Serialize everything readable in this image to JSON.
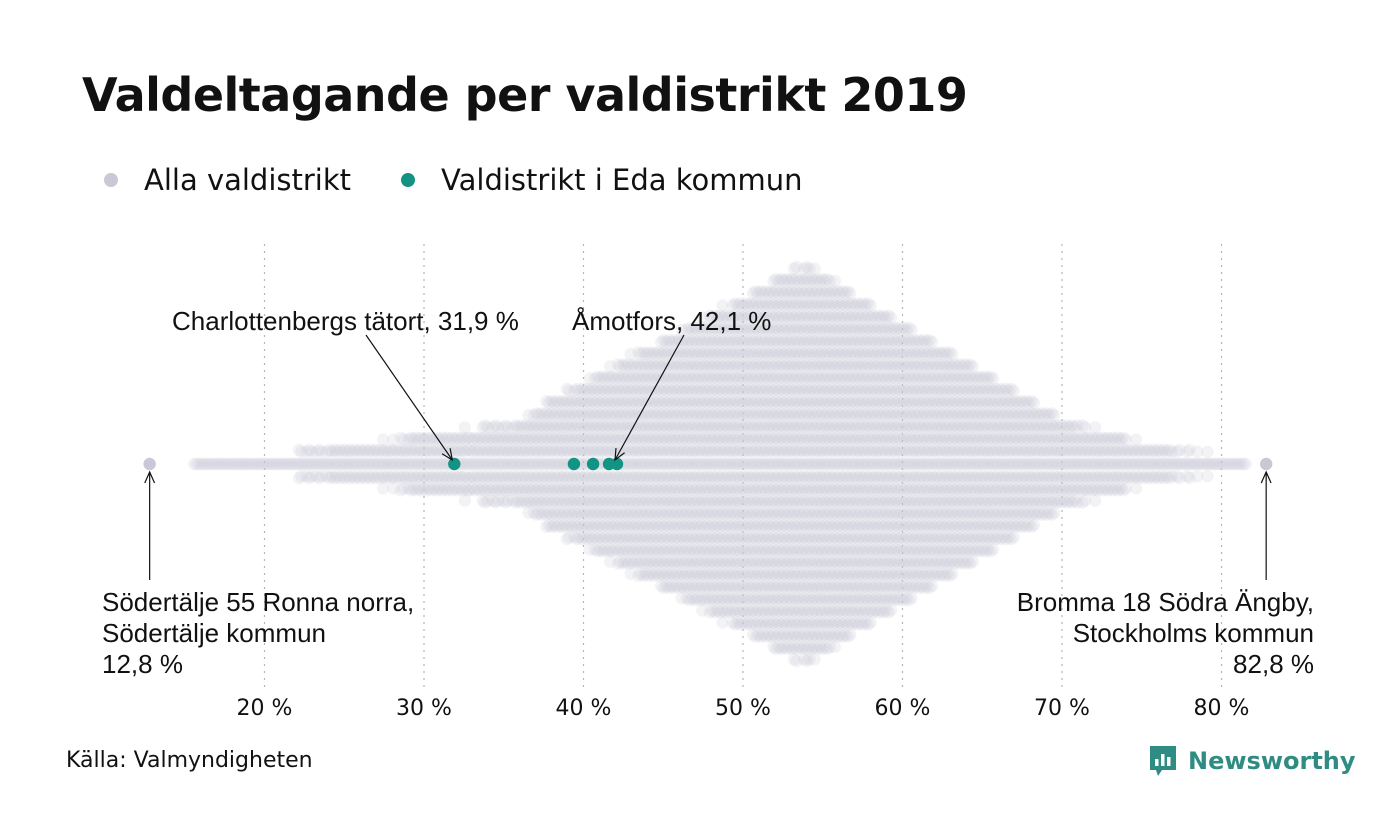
{
  "title": "Valdeltagande per valdistrikt 2019",
  "source": "Källa: Valmyndigheten",
  "brand": "Newsworthy",
  "colors": {
    "all": "#c9c8d6",
    "eda": "#129383",
    "brand": "#2e8c82"
  },
  "legend": [
    {
      "label": "Alla valdistrikt",
      "color": "#c9c8d6"
    },
    {
      "label": "Valdistrikt i Eda kommun",
      "color": "#129383"
    }
  ],
  "chart_data": {
    "type": "scatter",
    "title": "Valdeltagande per valdistrikt 2019",
    "xlabel": "",
    "ylabel": "",
    "xlim": [
      12.8,
      82.8
    ],
    "x_ticks": [
      20,
      30,
      40,
      50,
      60,
      70,
      80
    ],
    "tick_labels": [
      "20 %",
      "30 %",
      "40 %",
      "50 %",
      "60 %",
      "70 %",
      "80 %"
    ],
    "grid": "vertical dotted",
    "legend_position": "top-left",
    "series": [
      {
        "name": "Alla valdistrikt",
        "color": "#c9c8d6",
        "distribution_peak": 53.9,
        "x_min": 12.8,
        "x_max": 82.8
      },
      {
        "name": "Valdistrikt i Eda kommun",
        "color": "#129383",
        "values": [
          31.9,
          39.4,
          40.6,
          41.6,
          42.1
        ]
      }
    ],
    "annotations": [
      {
        "lines": [
          "Charlottenbergs tätort, 31,9 %"
        ],
        "x": 31.9
      },
      {
        "lines": [
          "Åmotfors, 42,1 %"
        ],
        "x": 42.1
      },
      {
        "lines": [
          "Södertälje 55 Ronna norra,",
          "Södertälje kommun",
          "12,8 %"
        ],
        "x": 12.8
      },
      {
        "lines": [
          "Bromma 18 Södra Ängby,",
          "Stockholms kommun",
          "82,8 %"
        ],
        "x": 82.8
      }
    ]
  }
}
